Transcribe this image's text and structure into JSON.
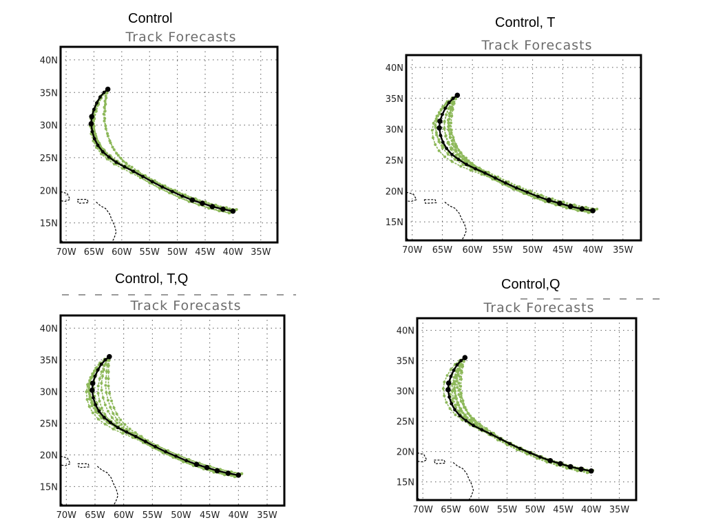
{
  "panels": [
    {
      "caption": "Control",
      "plot_title": "Track Forecasts",
      "lat_ticks": [
        "40N",
        "35N",
        "30N",
        "25N",
        "20N",
        "15N"
      ],
      "lon_ticks": [
        "70W",
        "65W",
        "60W",
        "55W",
        "50W",
        "45W",
        "40W",
        "35W"
      ]
    },
    {
      "caption": "Control, T",
      "plot_title": "Track Forecasts",
      "lat_ticks": [
        "40N",
        "35N",
        "30N",
        "25N",
        "20N",
        "15N"
      ],
      "lon_ticks": [
        "70W",
        "65W",
        "60W",
        "55W",
        "50W",
        "45W",
        "40W",
        "35W"
      ]
    },
    {
      "caption": "Control, T,Q",
      "plot_title": "Track Forecasts",
      "lat_ticks": [
        "40N",
        "35N",
        "30N",
        "25N",
        "20N",
        "15N"
      ],
      "lon_ticks": [
        "70W",
        "65W",
        "60W",
        "55W",
        "50W",
        "45W",
        "40W",
        "35W"
      ]
    },
    {
      "caption": "Control,Q",
      "plot_title": "Track Forecasts",
      "lat_ticks": [
        "40N",
        "35N",
        "30N",
        "25N",
        "20N",
        "15N"
      ],
      "lon_ticks": [
        "70W",
        "65W",
        "60W",
        "55W",
        "50W",
        "45W",
        "40W",
        "35W"
      ]
    }
  ],
  "colors": {
    "observed_track": "#000000",
    "forecast_tracks": "#8db85a"
  },
  "map": {
    "lon_range": [
      -71,
      -32
    ],
    "lat_range": [
      12,
      42
    ],
    "grid": true
  }
}
